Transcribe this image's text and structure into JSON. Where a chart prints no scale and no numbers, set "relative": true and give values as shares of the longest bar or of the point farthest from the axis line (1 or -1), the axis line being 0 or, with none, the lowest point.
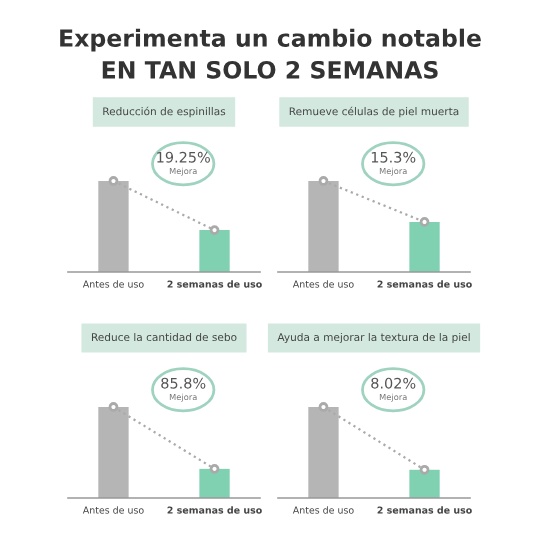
{
  "chart_data": [
    {
      "type": "other",
      "title": "Experimenta un cambio notable\nEN TAN SOLO 2 SEMANAS"
    },
    {
      "type": "bar",
      "title": "Reducción de espinillas",
      "categories": [
        "Antes de uso",
        "2 semanas de uso"
      ],
      "relative": true,
      "grid": false,
      "legend": false,
      "annotations": [
        "19.25%",
        "Mejora"
      ],
      "series": [
        {
          "type": "bar",
          "colors": [
            "#b5b5b5",
            "#7fd1b2"
          ],
          "values": [
            1,
            0.46
          ]
        },
        {
          "type": "line",
          "color": "#aaaaaa",
          "line_style": "dotted",
          "marker": "circle",
          "values": [
            1,
            0.46
          ]
        }
      ]
    },
    {
      "type": "bar",
      "title": "Remueve células de piel muerta",
      "categories": [
        "Antes de uso",
        "2 semanas de uso"
      ],
      "relative": true,
      "grid": false,
      "legend": false,
      "annotations": [
        "15.3%",
        "Mejora"
      ],
      "series": [
        {
          "type": "bar",
          "colors": [
            "#b5b5b5",
            "#7fd1b2"
          ],
          "values": [
            1,
            0.55
          ]
        },
        {
          "type": "line",
          "color": "#aaaaaa",
          "line_style": "dotted",
          "marker": "circle",
          "values": [
            1,
            0.55
          ]
        }
      ]
    },
    {
      "type": "bar",
      "title": "Reduce la cantidad de sebo",
      "categories": [
        "Antes de uso",
        "2 semanas de uso"
      ],
      "relative": true,
      "grid": false,
      "legend": false,
      "annotations": [
        "85.8%",
        "Mejora"
      ],
      "series": [
        {
          "type": "bar",
          "colors": [
            "#b5b5b5",
            "#7fd1b2"
          ],
          "values": [
            1,
            0.32
          ]
        },
        {
          "type": "line",
          "color": "#aaaaaa",
          "line_style": "dotted",
          "marker": "circle",
          "values": [
            1,
            0.32
          ]
        }
      ]
    },
    {
      "type": "bar",
      "title": "Ayuda a mejorar la textura de la piel",
      "categories": [
        "Antes de uso",
        "2 semanas de uso"
      ],
      "relative": true,
      "grid": false,
      "legend": false,
      "annotations": [
        "8.02%",
        "Mejora"
      ],
      "series": [
        {
          "type": "bar",
          "colors": [
            "#b5b5b5",
            "#7fd1b2"
          ],
          "values": [
            1,
            0.31
          ]
        },
        {
          "type": "line",
          "color": "#aaaaaa",
          "line_style": "dotted",
          "marker": "circle",
          "values": [
            1,
            0.31
          ]
        }
      ]
    }
  ]
}
